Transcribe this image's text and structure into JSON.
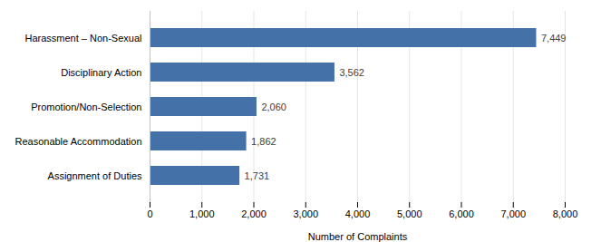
{
  "chart_data": {
    "type": "bar",
    "orientation": "horizontal",
    "categories": [
      "Assignment of Duties",
      "Reasonable Accommodation",
      "Promotion/Non-Selection",
      "Disciplinary Action",
      "Harassment – Non-Sexual"
    ],
    "values": [
      1731,
      1862,
      2060,
      3562,
      7449
    ],
    "value_labels": [
      "1,731",
      "1,862",
      "2,060",
      "3,562",
      "7,449"
    ],
    "data_labels": true,
    "color": "#4472a8",
    "xlabel": "Number of Complaints",
    "xlim": [
      0,
      8000
    ],
    "xticks": [
      0,
      {
        "value": 1000,
        "label": "1,000"
      },
      {
        "value": 2000,
        "label": "2,000"
      },
      {
        "value": 3000,
        "label": "3,000"
      },
      {
        "value": 4000,
        "label": "4,000"
      },
      {
        "value": 5000,
        "label": "5,000"
      },
      {
        "value": 6000,
        "label": "6,000"
      },
      {
        "value": 7000,
        "label": "7,000"
      },
      {
        "value": 8000,
        "label": "8,000"
      }
    ],
    "grid": true
  }
}
